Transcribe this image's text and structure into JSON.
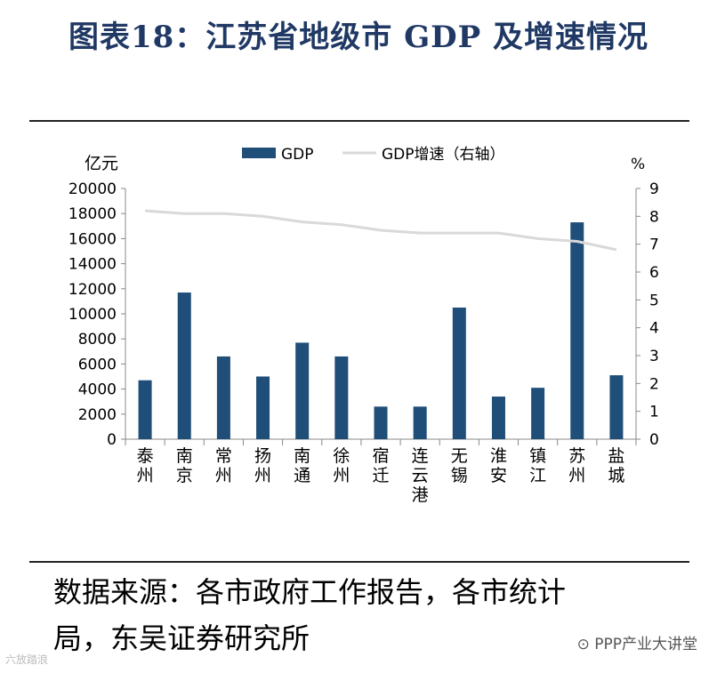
{
  "page": {
    "title": "图表18：江苏省地级市 GDP 及增速情况",
    "source_line1": "数据来源：各市政府工作报告，各市统计",
    "source_line2": "局，东吴证券研究所",
    "watermark_right": "PPP产业大讲堂",
    "watermark_left": "六放踏浪"
  },
  "colors": {
    "bar": "#1f4e79",
    "line": "#d9d9d9",
    "title": "#1f3864"
  },
  "chart_data": {
    "type": "bar",
    "categories": [
      "泰州",
      "南京",
      "常州",
      "扬州",
      "南通",
      "徐州",
      "宿迁",
      "连云港",
      "无锡",
      "淮安",
      "镇江",
      "苏州",
      "盐城"
    ],
    "category_lines": [
      [
        "泰",
        "州"
      ],
      [
        "南",
        "京"
      ],
      [
        "常",
        "州"
      ],
      [
        "扬",
        "州"
      ],
      [
        "南",
        "通"
      ],
      [
        "徐",
        "州"
      ],
      [
        "宿",
        "迁"
      ],
      [
        "连",
        "云",
        "港"
      ],
      [
        "无",
        "锡"
      ],
      [
        "淮",
        "安"
      ],
      [
        "镇",
        "江"
      ],
      [
        "苏",
        "州"
      ],
      [
        "盐",
        "城"
      ]
    ],
    "series": [
      {
        "name": "GDP",
        "type": "bar",
        "axis": "left",
        "values": [
          4700,
          11700,
          6600,
          5000,
          7700,
          6600,
          2600,
          2600,
          10500,
          3400,
          4100,
          17300,
          5100
        ]
      },
      {
        "name": "GDP增速（右轴）",
        "type": "line",
        "axis": "right",
        "values": [
          8.2,
          8.1,
          8.1,
          8.0,
          7.8,
          7.7,
          7.5,
          7.4,
          7.4,
          7.4,
          7.2,
          7.1,
          6.8
        ]
      }
    ],
    "ylabel_left": "亿元",
    "ylabel_right": "%",
    "ylim_left": [
      0,
      20000
    ],
    "ylim_right": [
      0,
      9
    ],
    "yticks_left": [
      "0",
      "2000",
      "4000",
      "6000",
      "8000",
      "10000",
      "12000",
      "14000",
      "16000",
      "18000",
      "20000"
    ],
    "yticks_right": [
      "0",
      "1",
      "2",
      "3",
      "4",
      "5",
      "6",
      "7",
      "8",
      "9"
    ],
    "legend": [
      "GDP",
      "GDP增速（右轴）"
    ],
    "legend_position": "top-center",
    "grid": false
  }
}
